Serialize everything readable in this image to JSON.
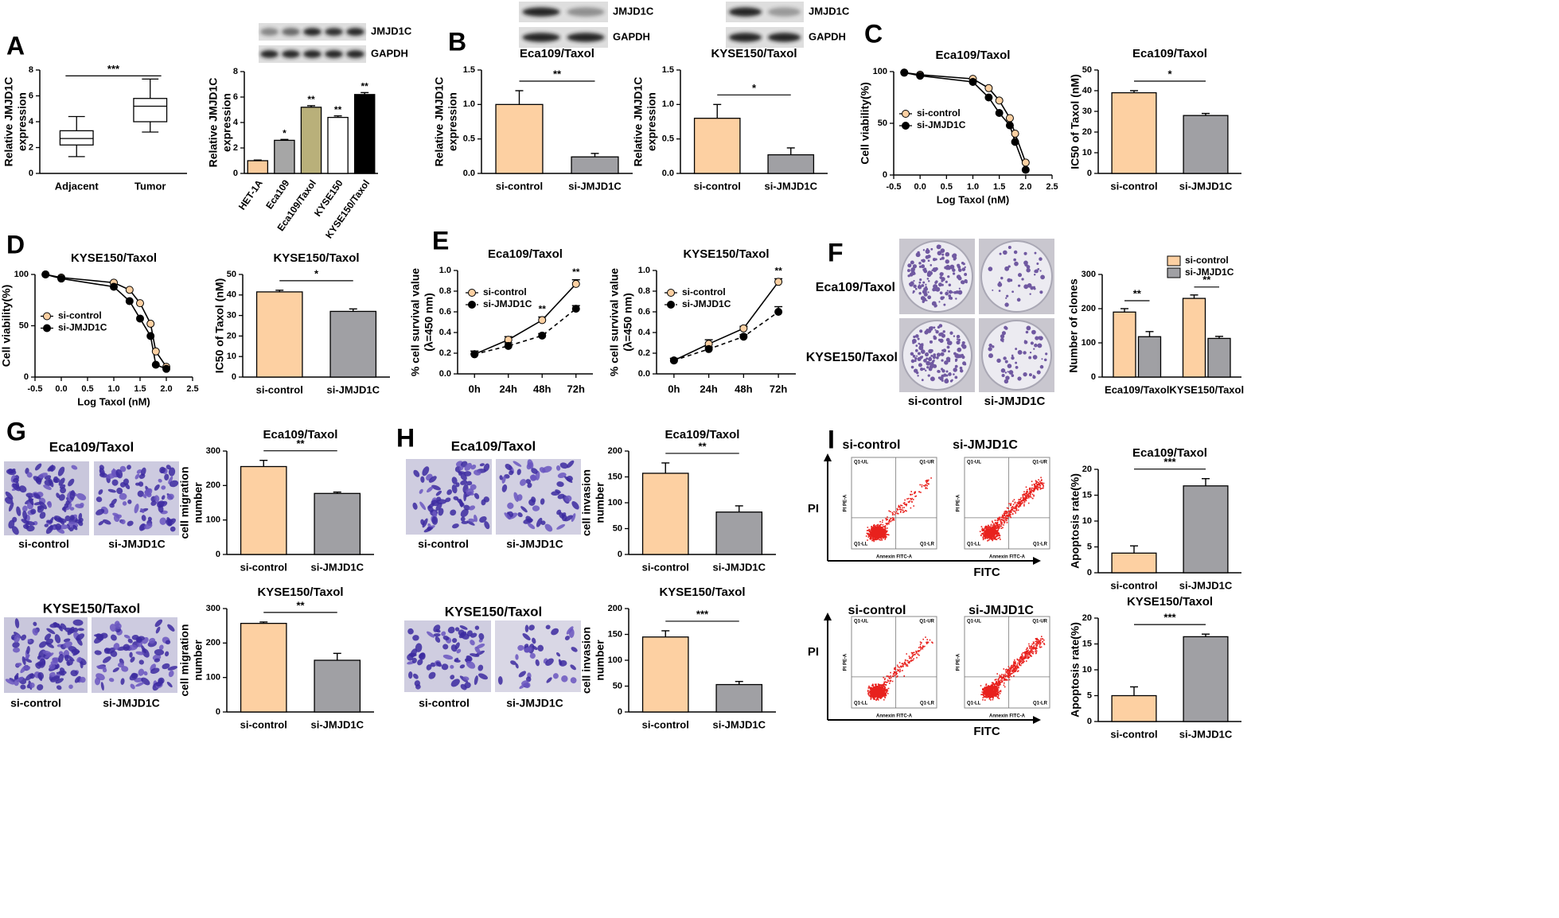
{
  "figure_text": {
    "panel_letters": [
      "A",
      "B",
      "C",
      "D",
      "E",
      "F",
      "G",
      "H",
      "I"
    ],
    "blot_labels": [
      "JMJD1C",
      "GAPDH"
    ],
    "colony": {
      "rows": [
        "Eca109/Taxol",
        "KYSE150/Taxol"
      ],
      "columns": [
        "si-control",
        "si-JMJD1C"
      ]
    },
    "migration": {
      "titles": [
        "Eca109/Taxol",
        "KYSE150/Taxol"
      ],
      "columns": [
        "si-control",
        "si-JMJD1C"
      ]
    },
    "invasion": {
      "titles": [
        "Eca109/Taxol",
        "KYSE150/Taxol"
      ],
      "columns": [
        "si-control",
        "si-JMJD1C"
      ]
    },
    "flow": {
      "columns": [
        "si-control",
        "si-JMJD1C"
      ],
      "y_axis": "PI",
      "x_axis": "FITC",
      "quadrants": [
        "Q1-UL",
        "Q1-UR",
        "Q1-LL",
        "Q1-LR"
      ],
      "plot_x_label": "Annexin FITC-A",
      "plot_y_label": "PI PE-A"
    }
  },
  "chart_data": [
    {
      "type": "box",
      "ylabel": [
        "Relative JMJD1C",
        "expression"
      ],
      "categories": [
        "Adjacent",
        "Tumor"
      ],
      "boxes": [
        {
          "min": 1.3,
          "q1": 2.2,
          "median": 2.7,
          "q3": 3.3,
          "max": 4.4
        },
        {
          "min": 3.2,
          "q1": 4.0,
          "median": 5.2,
          "q3": 5.8,
          "max": 7.3
        }
      ],
      "color": "#ffffff",
      "significance": "***",
      "ylim": [
        0,
        8
      ],
      "yticks": [
        0,
        2,
        4,
        6,
        8
      ]
    },
    {
      "type": "bar",
      "ylabel": [
        "Relative JMJD1C",
        "expression"
      ],
      "categories": [
        "HET-1A",
        "Eca109",
        "Eca109/Taxol",
        "KYSE150",
        "KYSE150/Taxol"
      ],
      "values": [
        1.0,
        2.6,
        5.2,
        4.4,
        6.2
      ],
      "errors": [
        0.05,
        0.07,
        0.12,
        0.12,
        0.15
      ],
      "colors": [
        "#f9cb9c",
        "#a6a6a6",
        "#b9b07a",
        "#ffffff",
        "#000000"
      ],
      "stars": [
        null,
        "*",
        "**",
        "**",
        "**"
      ],
      "rotate_labels": true,
      "ylim": [
        0,
        8
      ],
      "yticks": [
        0,
        2,
        4,
        6,
        8
      ]
    },
    {
      "type": "bar",
      "title": "Eca109/Taxol",
      "ylabel": [
        "Relative JMJD1C",
        "expression"
      ],
      "categories": [
        "si-control",
        "si-JMJD1C"
      ],
      "values": [
        1.0,
        0.24
      ],
      "errors": [
        0.2,
        0.05
      ],
      "colors": [
        "#fdd0a2",
        "#a0a0a4"
      ],
      "significance": "**",
      "ylim": [
        0,
        1.5
      ],
      "yticks": [
        {
          "value": 0,
          "label": "0.0"
        },
        0.5,
        {
          "value": 1,
          "label": "1.0"
        },
        1.5
      ]
    },
    {
      "type": "bar",
      "title": "KYSE150/Taxol",
      "ylabel": [
        "Relative JMJD1C",
        "expression"
      ],
      "categories": [
        "si-control",
        "si-JMJD1C"
      ],
      "values": [
        0.8,
        0.27
      ],
      "errors": [
        0.2,
        0.1
      ],
      "colors": [
        "#fdd0a2",
        "#a0a0a4"
      ],
      "significance": "*",
      "ylim": [
        0,
        1.5
      ],
      "yticks": [
        {
          "value": 0,
          "label": "0.0"
        },
        0.5,
        {
          "value": 1,
          "label": "1.0"
        },
        1.5
      ]
    },
    {
      "type": "line",
      "title": "Eca109/Taxol",
      "xlabel": "Log Taxol (nM)",
      "ylabel": [
        "Cell viability(%)"
      ],
      "x": [
        -0.3,
        0,
        1,
        1.3,
        1.5,
        1.7,
        1.8,
        2
      ],
      "series": [
        {
          "name": "si-control",
          "color": "#fdd0a2",
          "values": [
            99,
            97,
            93,
            84,
            72,
            55,
            40,
            12
          ],
          "line_style": "solid"
        },
        {
          "name": "si-JMJD1C",
          "color": "#000000",
          "values": [
            99,
            96,
            90,
            75,
            60,
            48,
            32,
            5
          ],
          "line_style": "solid"
        }
      ],
      "legend": "center left",
      "xlim": [
        -0.5,
        2.5
      ],
      "xticks": [
        -0.5,
        {
          "value": 0,
          "label": "0.0"
        },
        0.5,
        {
          "value": 1,
          "label": "1.0"
        },
        1.5,
        {
          "value": 2,
          "label": "2.0"
        },
        2.5
      ],
      "ylim": [
        0,
        100
      ],
      "yticks": [
        0,
        50,
        100
      ]
    },
    {
      "type": "bar",
      "title": "Eca109/Taxol",
      "ylabel": [
        "IC50 of Taxol (nM)"
      ],
      "categories": [
        "si-control",
        "si-JMJD1C"
      ],
      "values": [
        39,
        28
      ],
      "errors": [
        1,
        1
      ],
      "colors": [
        "#fdd0a2",
        "#a0a0a4"
      ],
      "significance": "*",
      "ylim": [
        0,
        50
      ],
      "yticks": [
        0,
        10,
        20,
        30,
        40,
        50
      ]
    },
    {
      "type": "line",
      "title": "KYSE150/Taxol",
      "xlabel": "Log Taxol (nM)",
      "ylabel": [
        "Cell viability(%)"
      ],
      "x": [
        -0.3,
        0,
        1,
        1.3,
        1.5,
        1.7,
        1.8,
        2
      ],
      "series": [
        {
          "name": "si-control",
          "color": "#fdd0a2",
          "values": [
            100,
            97,
            92,
            85,
            72,
            52,
            25,
            10
          ],
          "line_style": "solid"
        },
        {
          "name": "si-JMJD1C",
          "color": "#000000",
          "values": [
            100,
            96,
            88,
            74,
            57,
            40,
            12,
            8
          ],
          "line_style": "solid"
        }
      ],
      "legend": "center left",
      "xlim": [
        -0.5,
        2.5
      ],
      "xticks": [
        -0.5,
        {
          "value": 0,
          "label": "0.0"
        },
        0.5,
        {
          "value": 1,
          "label": "1.0"
        },
        1.5,
        {
          "value": 2,
          "label": "2.0"
        },
        2.5
      ],
      "ylim": [
        0,
        100
      ],
      "yticks": [
        0,
        50,
        100
      ]
    },
    {
      "type": "bar",
      "title": "KYSE150/Taxol",
      "ylabel": [
        "IC50 of Taxol (nM)"
      ],
      "categories": [
        "si-control",
        "si-JMJD1C"
      ],
      "values": [
        41.5,
        32
      ],
      "errors": [
        0.8,
        1.2
      ],
      "colors": [
        "#fdd0a2",
        "#a0a0a4"
      ],
      "significance": "*",
      "ylim": [
        0,
        50
      ],
      "yticks": [
        0,
        10,
        20,
        30,
        40,
        50
      ]
    },
    {
      "type": "line",
      "title": "Eca109/Taxol",
      "ylabel": [
        "% cell survival value",
        "(λ=450 nm)"
      ],
      "categories": [
        "0h",
        "24h",
        "48h",
        "72h"
      ],
      "series": [
        {
          "name": "si-control",
          "color": "#fdd0a2",
          "values": [
            0.19,
            0.33,
            0.52,
            0.87
          ],
          "errors": [
            0.03,
            0.03,
            0.03,
            0.04
          ],
          "line_style": "solid"
        },
        {
          "name": "si-JMJD1C",
          "color": "#000000",
          "values": [
            0.19,
            0.27,
            0.37,
            0.63
          ],
          "errors": [
            0.03,
            0.03,
            0.02,
            0.03
          ],
          "line_style": "dashed"
        }
      ],
      "stars": [
        null,
        null,
        "**",
        "**"
      ],
      "legend": "upper left",
      "ylim": [
        0,
        1
      ],
      "yticks": [
        {
          "value": 0,
          "label": "0.0"
        },
        0.2,
        0.4,
        0.6,
        0.8,
        {
          "value": 1,
          "label": "1.0"
        }
      ]
    },
    {
      "type": "line",
      "title": "KYSE150/Taxol",
      "ylabel": [
        "% cell survival value",
        "(λ=450 nm)"
      ],
      "categories": [
        "0h",
        "24h",
        "48h",
        "72h"
      ],
      "series": [
        {
          "name": "si-control",
          "color": "#fdd0a2",
          "values": [
            0.13,
            0.29,
            0.44,
            0.89
          ],
          "errors": [
            0.02,
            0.04,
            0.02,
            0.03
          ],
          "line_style": "solid"
        },
        {
          "name": "si-JMJD1C",
          "color": "#000000",
          "values": [
            0.13,
            0.24,
            0.36,
            0.6
          ],
          "errors": [
            0.02,
            0.02,
            0.02,
            0.05
          ],
          "line_style": "dashed"
        }
      ],
      "stars": [
        null,
        null,
        null,
        "**"
      ],
      "legend": "upper left",
      "ylim": [
        0,
        1
      ],
      "yticks": [
        {
          "value": 0,
          "label": "0.0"
        },
        0.2,
        0.4,
        0.6,
        0.8,
        {
          "value": 1,
          "label": "1.0"
        }
      ]
    },
    {
      "type": "grouped_bar",
      "ylabel": [
        "Number of clones"
      ],
      "categories": [
        "Eca109/Taxol",
        "KYSE150/Taxol"
      ],
      "series": [
        {
          "name": "si-control",
          "color": "#fdd0a2",
          "values": [
            190,
            230
          ],
          "errors": [
            10,
            10
          ]
        },
        {
          "name": "si-JMJD1C",
          "color": "#a0a0a4",
          "values": [
            118,
            113
          ],
          "errors": [
            15,
            6
          ]
        }
      ],
      "stars": [
        "**",
        "**"
      ],
      "legend": "upper right",
      "ylim": [
        0,
        300
      ],
      "yticks": [
        0,
        100,
        200,
        300
      ]
    },
    {
      "type": "bar",
      "title": "Eca109/Taxol",
      "ylabel": [
        "cell migration",
        "number"
      ],
      "categories": [
        "si-control",
        "si-JMJD1C"
      ],
      "values": [
        255,
        177
      ],
      "errors": [
        18,
        4
      ],
      "colors": [
        "#fdd0a2",
        "#a0a0a4"
      ],
      "significance": "**",
      "ylim": [
        0,
        300
      ],
      "yticks": [
        0,
        100,
        200,
        300
      ]
    },
    {
      "type": "bar",
      "title": "KYSE150/Taxol",
      "ylabel": [
        "cell migration",
        "number"
      ],
      "categories": [
        "si-control",
        "si-JMJD1C"
      ],
      "values": [
        257,
        150
      ],
      "errors": [
        4,
        20
      ],
      "colors": [
        "#fdd0a2",
        "#a0a0a4"
      ],
      "significance": "**",
      "ylim": [
        0,
        300
      ],
      "yticks": [
        0,
        100,
        200,
        300
      ]
    },
    {
      "type": "bar",
      "title": "Eca109/Taxol",
      "ylabel": [
        "cell invasion",
        "number"
      ],
      "categories": [
        "si-control",
        "si-JMJD1C"
      ],
      "values": [
        157,
        82
      ],
      "errors": [
        20,
        12
      ],
      "colors": [
        "#fdd0a2",
        "#a0a0a4"
      ],
      "significance": "**",
      "ylim": [
        0,
        200
      ],
      "yticks": [
        0,
        50,
        100,
        150,
        200
      ]
    },
    {
      "type": "bar",
      "title": "KYSE150/Taxol",
      "ylabel": [
        "cell invasion",
        "number"
      ],
      "categories": [
        "si-control",
        "si-JMJD1C"
      ],
      "values": [
        145,
        53
      ],
      "errors": [
        12,
        6
      ],
      "colors": [
        "#fdd0a2",
        "#a0a0a4"
      ],
      "significance": "***",
      "ylim": [
        0,
        200
      ],
      "yticks": [
        0,
        50,
        100,
        150,
        200
      ]
    },
    {
      "type": "bar",
      "title": "Eca109/Taxol",
      "ylabel": [
        "Apoptosis rate(%)"
      ],
      "categories": [
        "si-control",
        "si-JMJD1C"
      ],
      "values": [
        3.8,
        16.8
      ],
      "errors": [
        1.4,
        1.4
      ],
      "colors": [
        "#fdd0a2",
        "#a0a0a4"
      ],
      "significance": "***",
      "ylim": [
        0,
        20
      ],
      "yticks": [
        0,
        5,
        10,
        15,
        20
      ]
    },
    {
      "type": "bar",
      "title": "KYSE150/Taxol",
      "ylabel": [
        "Apoptosis rate(%)"
      ],
      "categories": [
        "si-control",
        "si-JMJD1C"
      ],
      "values": [
        5.0,
        16.4
      ],
      "errors": [
        1.7,
        0.5
      ],
      "colors": [
        "#fdd0a2",
        "#a0a0a4"
      ],
      "significance": "***",
      "ylim": [
        0,
        20
      ],
      "yticks": [
        0,
        5,
        10,
        15,
        20
      ]
    }
  ]
}
